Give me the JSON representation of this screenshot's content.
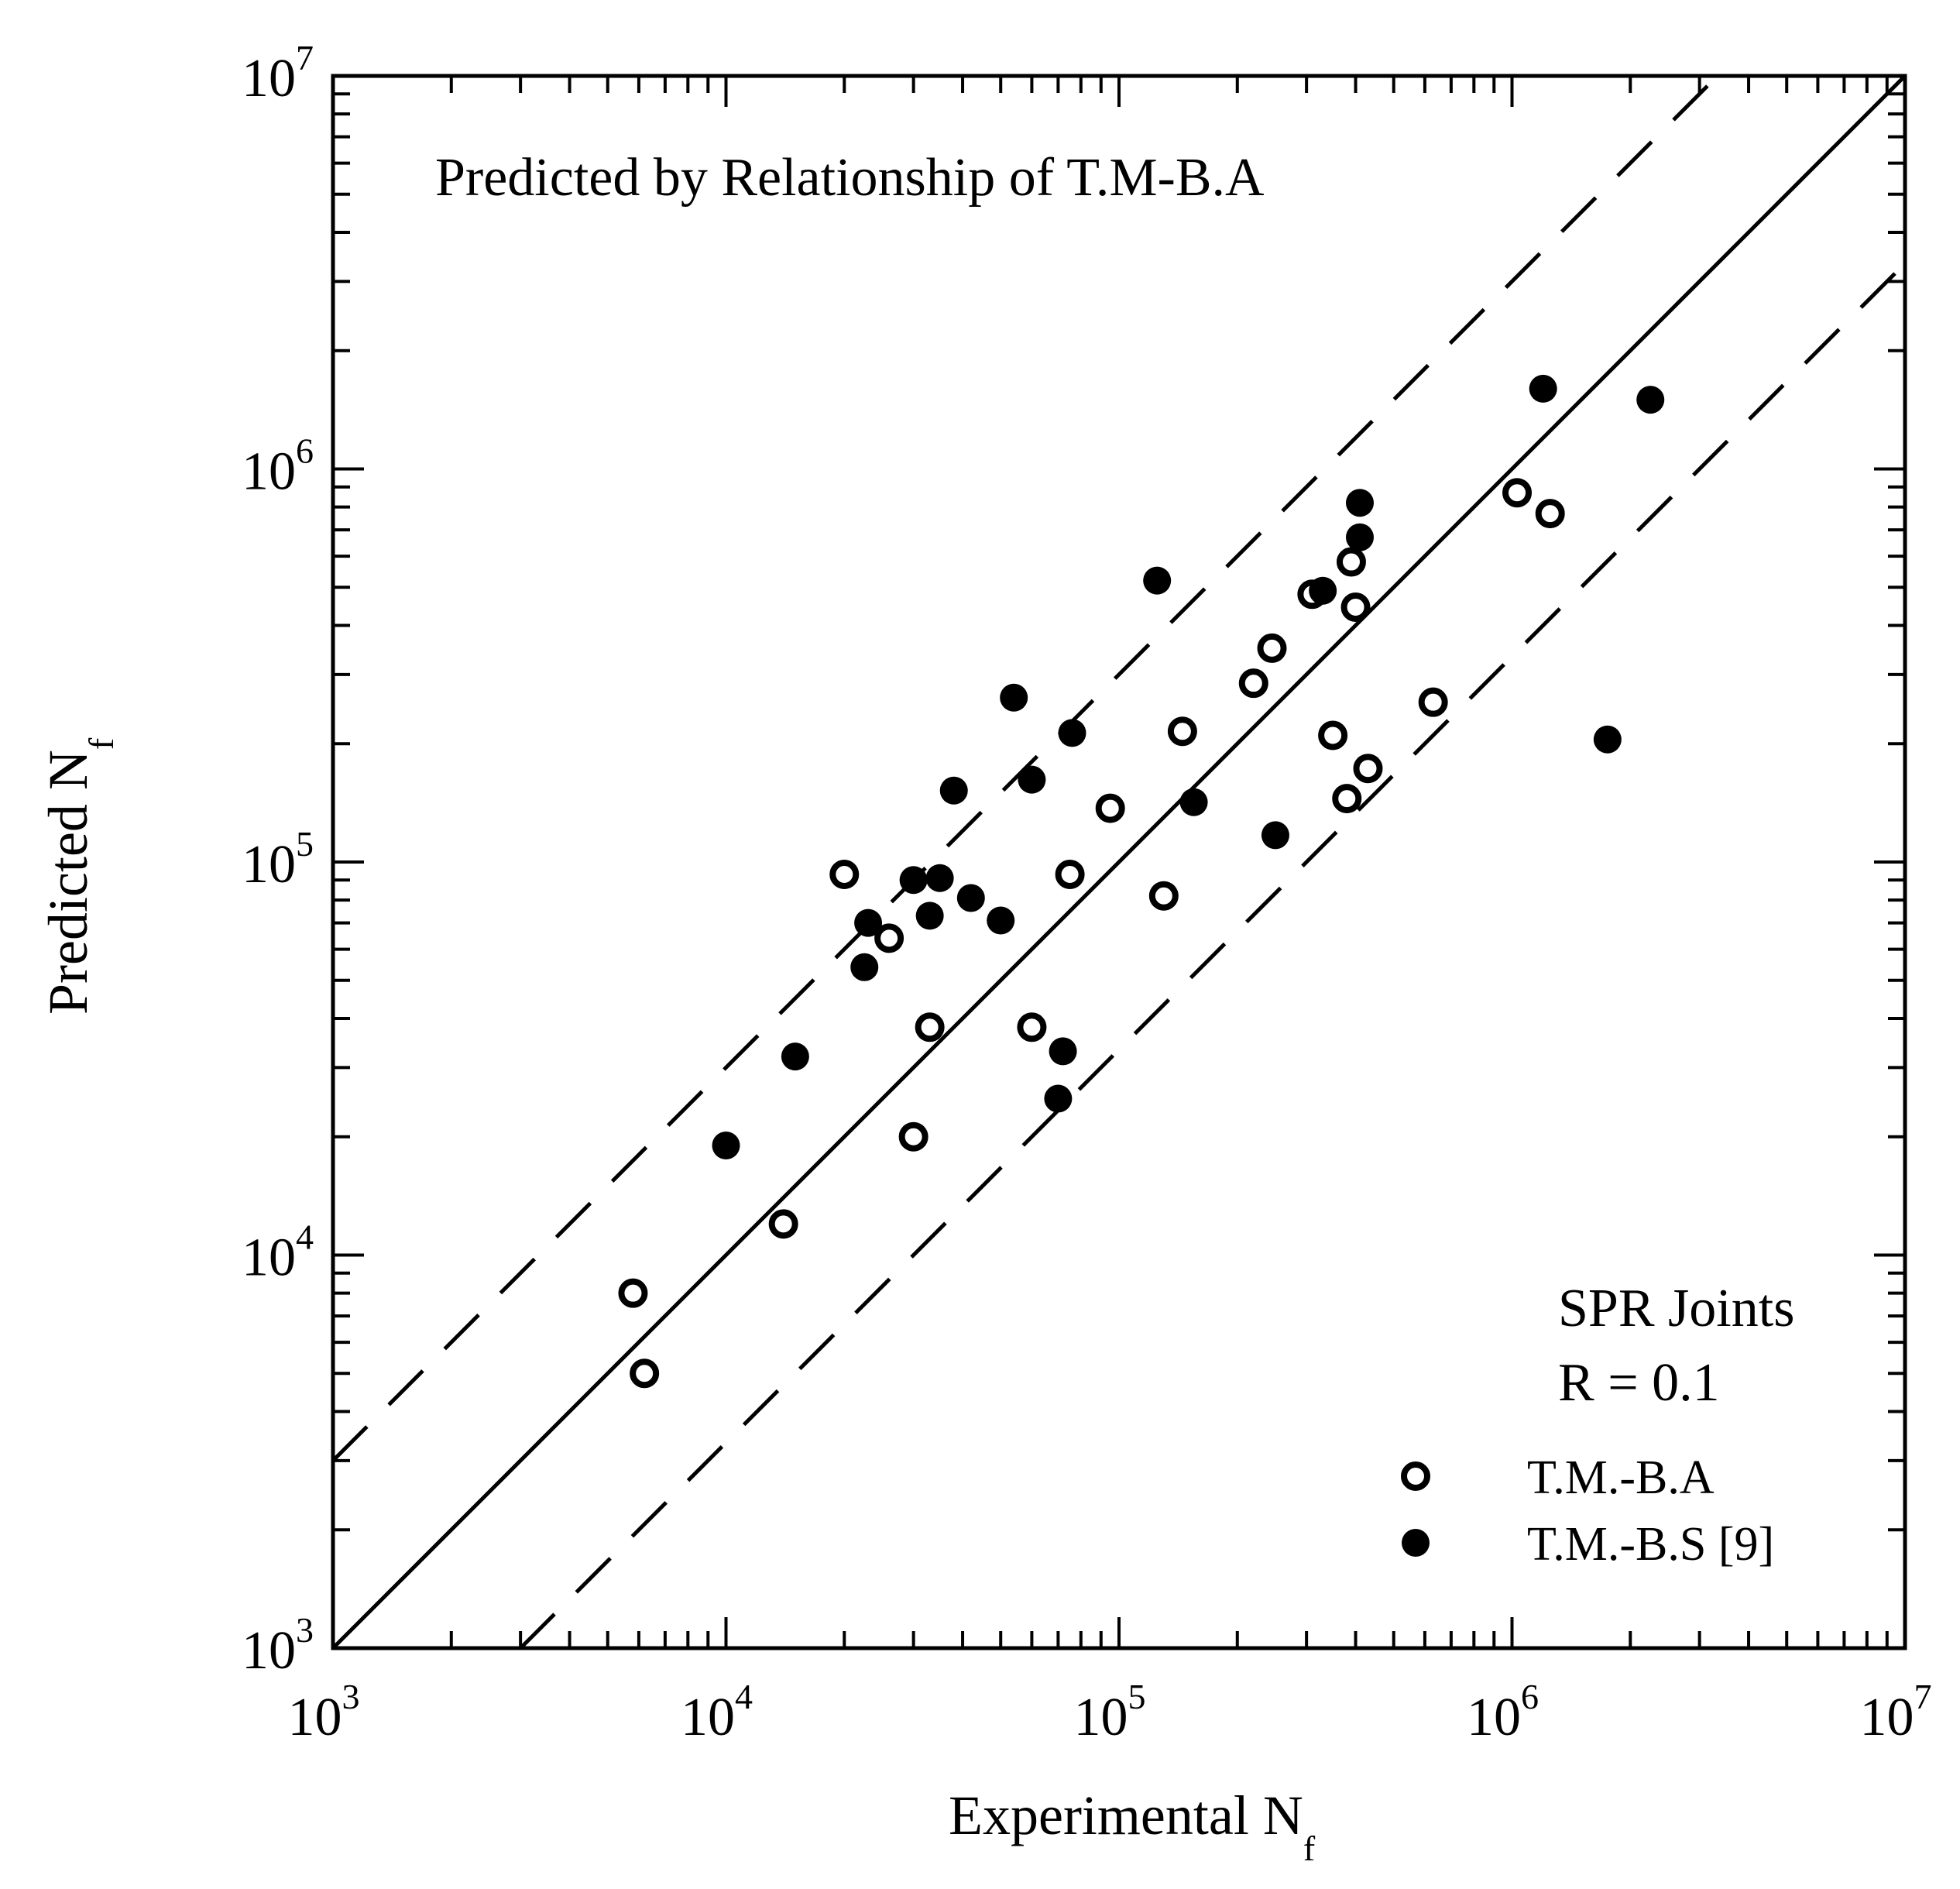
{
  "chart_data": {
    "type": "scatter",
    "title": "",
    "annotation": "Predicted by Relationship of T.M-B.A",
    "xlabel": "Experimental N",
    "xlabel_sub": "f",
    "ylabel": "Predicted N",
    "ylabel_sub": "f",
    "xscale": "log",
    "yscale": "log",
    "xlim": [
      1000,
      10000000
    ],
    "ylim": [
      1000,
      10000000
    ],
    "tick_labels": [
      {
        "base": "10",
        "exp": "3",
        "value": 1000
      },
      {
        "base": "10",
        "exp": "4",
        "value": 10000
      },
      {
        "base": "10",
        "exp": "5",
        "value": 100000
      },
      {
        "base": "10",
        "exp": "6",
        "value": 1000000
      },
      {
        "base": "10",
        "exp": "7",
        "value": 10000000
      }
    ],
    "grid": false,
    "legend_position": "bottom-right",
    "legend_header": [
      "SPR Joints",
      "R = 0.1"
    ],
    "reference_lines": [
      {
        "style": "solid",
        "factor": 1
      },
      {
        "style": "dashed",
        "factor": 3
      },
      {
        "style": "dashed",
        "factor": 0.3333
      }
    ],
    "series": [
      {
        "name": "T.M.-B.A",
        "marker": "open-circle",
        "points": [
          [
            5800,
            8000
          ],
          [
            6200,
            5000
          ],
          [
            14000,
            12000
          ],
          [
            20000,
            93000
          ],
          [
            26000,
            64000
          ],
          [
            30000,
            20000
          ],
          [
            33000,
            38000
          ],
          [
            60000,
            38000
          ],
          [
            75000,
            93000
          ],
          [
            95000,
            137000
          ],
          [
            130000,
            82000
          ],
          [
            145000,
            215000
          ],
          [
            220000,
            285000
          ],
          [
            245000,
            350000
          ],
          [
            310000,
            480000
          ],
          [
            350000,
            210000
          ],
          [
            380000,
            145000
          ],
          [
            390000,
            580000
          ],
          [
            400000,
            445000
          ],
          [
            430000,
            173000
          ],
          [
            630000,
            255000
          ],
          [
            1030000,
            870000
          ],
          [
            1250000,
            770000
          ]
        ]
      },
      {
        "name": "T.M.-B.S [9]",
        "marker": "filled-circle",
        "points": [
          [
            10000,
            19000
          ],
          [
            15000,
            32000
          ],
          [
            22500,
            54000
          ],
          [
            23000,
            70000
          ],
          [
            30000,
            90000
          ],
          [
            33000,
            73000
          ],
          [
            35000,
            91000
          ],
          [
            38000,
            152000
          ],
          [
            42000,
            81000
          ],
          [
            50000,
            71000
          ],
          [
            54000,
            262000
          ],
          [
            60000,
            162000
          ],
          [
            70000,
            25000
          ],
          [
            72000,
            33000
          ],
          [
            76000,
            213000
          ],
          [
            125000,
            520000
          ],
          [
            155000,
            142000
          ],
          [
            250000,
            117000
          ],
          [
            330000,
            490000
          ],
          [
            410000,
            670000
          ],
          [
            410000,
            820000
          ],
          [
            1200000,
            1600000
          ],
          [
            1750000,
            205000
          ],
          [
            2250000,
            1500000
          ]
        ]
      }
    ]
  }
}
